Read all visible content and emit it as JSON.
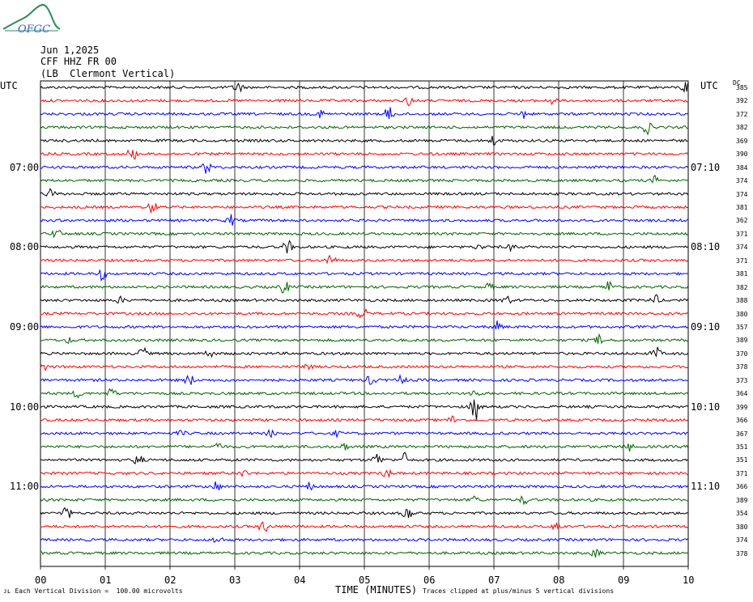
{
  "header": {
    "logo_text": "OFGC",
    "date": "Jun 1,2025",
    "station": "CFF HHZ FR 00",
    "location": "(LB  Clermont Vertical)"
  },
  "left_axis_title": "UTC",
  "right_axis_title": "UTC",
  "dc_header": "DC",
  "colors": {
    "black": "#000000",
    "red": "#ff0000",
    "blue": "#0000ff",
    "green": "#006400",
    "grid": "#000000"
  },
  "chart_data": {
    "type": "helicorder",
    "xlabel": "TIME (MINUTES)",
    "xlim": [
      0,
      10
    ],
    "x_ticks": [
      "00",
      "01",
      "02",
      "03",
      "04",
      "05",
      "06",
      "07",
      "08",
      "09",
      "10"
    ],
    "trace_colors": [
      "black",
      "red",
      "blue",
      "green"
    ],
    "left_time_labels": [
      {
        "label": "07:00",
        "row": 6
      },
      {
        "label": "08:00",
        "row": 12
      },
      {
        "label": "09:00",
        "row": 18
      },
      {
        "label": "10:00",
        "row": 24
      },
      {
        "label": "11:00",
        "row": 30
      }
    ],
    "right_time_labels": [
      {
        "label": "07:10",
        "row": 6
      },
      {
        "label": "08:10",
        "row": 12
      },
      {
        "label": "09:10",
        "row": 18
      },
      {
        "label": "10:10",
        "row": 24
      },
      {
        "label": "11:10",
        "row": 30
      }
    ],
    "dc_offsets": [
      385,
      392,
      372,
      382,
      369,
      390,
      384,
      374,
      374,
      381,
      362,
      371,
      374,
      371,
      381,
      382,
      388,
      380,
      357,
      389,
      370,
      378,
      373,
      364,
      399,
      366,
      367,
      351,
      351,
      371,
      366,
      389,
      354,
      380,
      374,
      378
    ],
    "footer_left": "Each Vertical Division =  100.00 microvolts",
    "footer_right": "Traces clipped at plus/minus 5 vertical divisions"
  }
}
